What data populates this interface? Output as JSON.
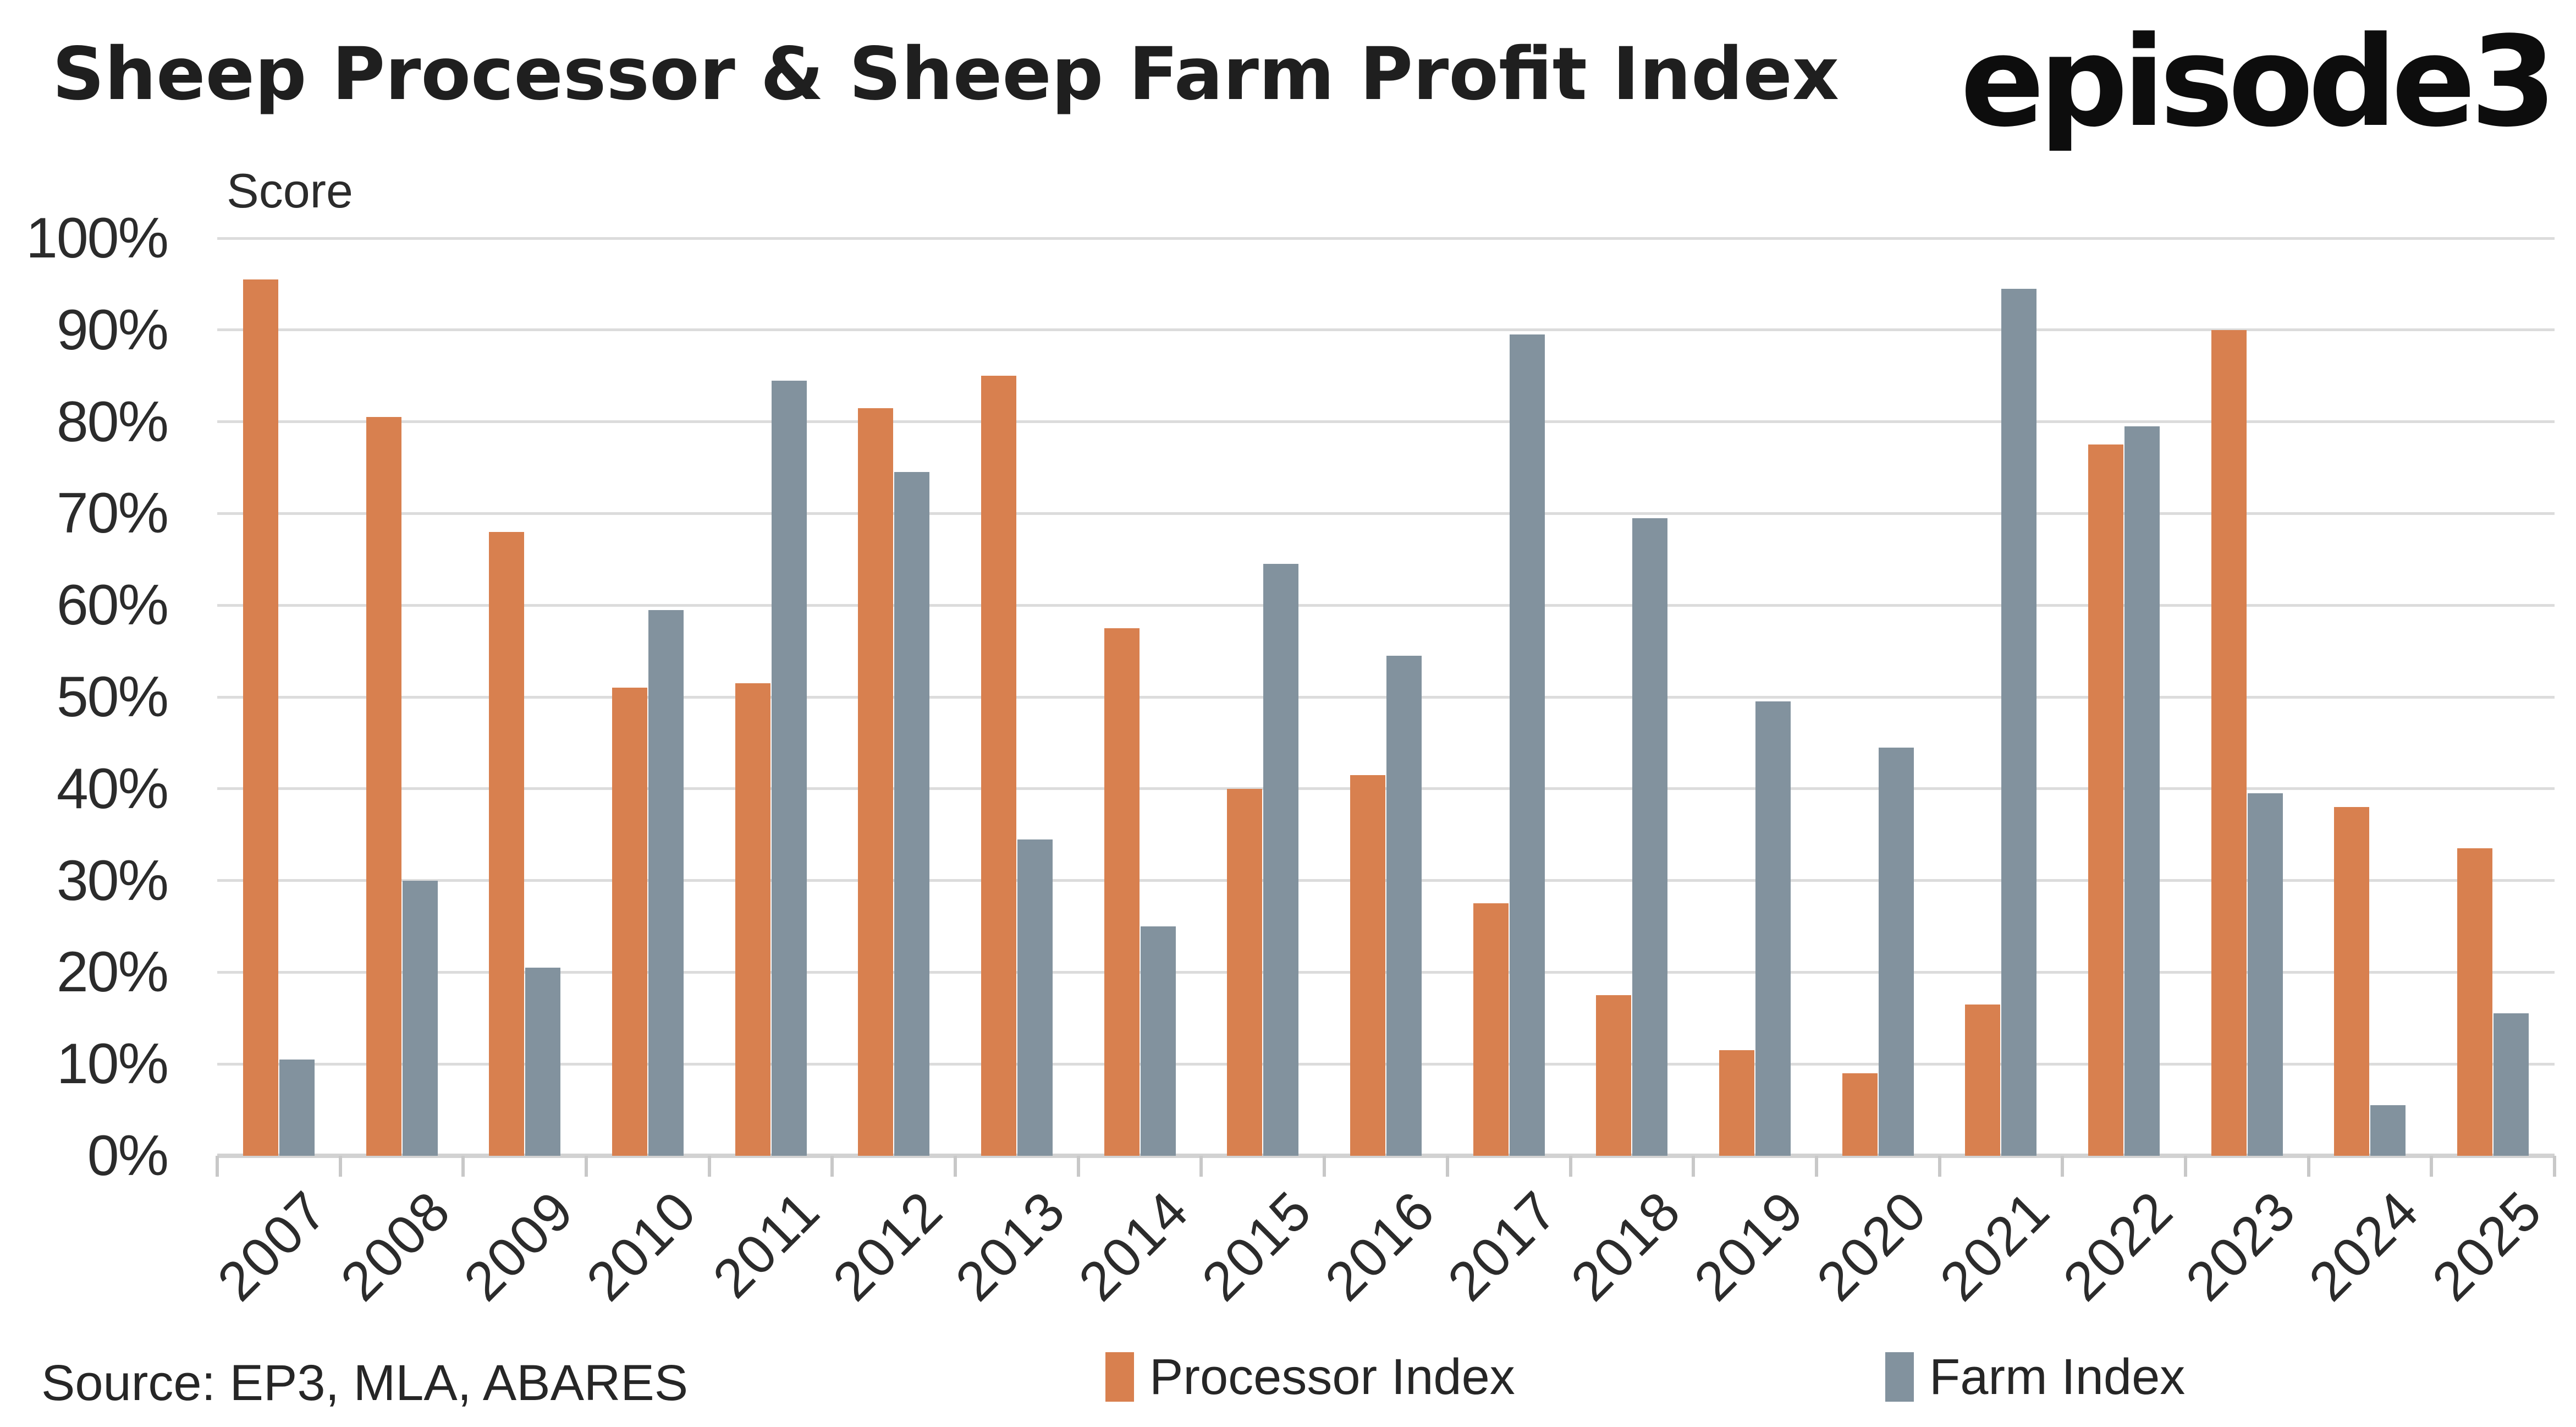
{
  "header": {
    "title": "Sheep Processor & Sheep Farm Profit Index",
    "logo": "episode3"
  },
  "chart_data": {
    "type": "bar",
    "title": "Sheep Processor & Sheep Farm Profit Index",
    "xlabel": "",
    "ylabel": "Score",
    "categories": [
      "2007",
      "2008",
      "2009",
      "2010",
      "2011",
      "2012",
      "2013",
      "2014",
      "2015",
      "2016",
      "2017",
      "2018",
      "2019",
      "2020",
      "2021",
      "2022",
      "2023",
      "2024",
      "2025"
    ],
    "series": [
      {
        "name": "Processor Index",
        "color": "#D8804F",
        "values": [
          95.5,
          80.5,
          68,
          51,
          51.5,
          81.5,
          85,
          57.5,
          40,
          41.5,
          27.5,
          17.5,
          11.5,
          9,
          16.5,
          77.5,
          90,
          38,
          33.5
        ]
      },
      {
        "name": "Farm Index",
        "color": "#82929E",
        "values": [
          10.5,
          30,
          20.5,
          59.5,
          84.5,
          74.5,
          34.5,
          25,
          64.5,
          54.5,
          89.5,
          69.5,
          49.5,
          44.5,
          94.5,
          79.5,
          39.5,
          5.5,
          15.5
        ]
      }
    ],
    "ylim": [
      0,
      100
    ],
    "ytick_labels": [
      "0%",
      "10%",
      "20%",
      "30%",
      "40%",
      "50%",
      "60%",
      "70%",
      "80%",
      "90%",
      "100%"
    ],
    "ytick_step": 10,
    "value_format": "percent",
    "grid": "horizontal",
    "legend_position": "bottom"
  },
  "footer": {
    "source": "Source: EP3, MLA, ABARES"
  },
  "colors": {
    "processor": "#D8804F",
    "farm": "#82929E",
    "gridline": "#DCDCDC",
    "axis_line": "#D2D2D2",
    "tick_mark": "#C8C8C8",
    "text": "#262626",
    "background": "#FFFFFF"
  }
}
